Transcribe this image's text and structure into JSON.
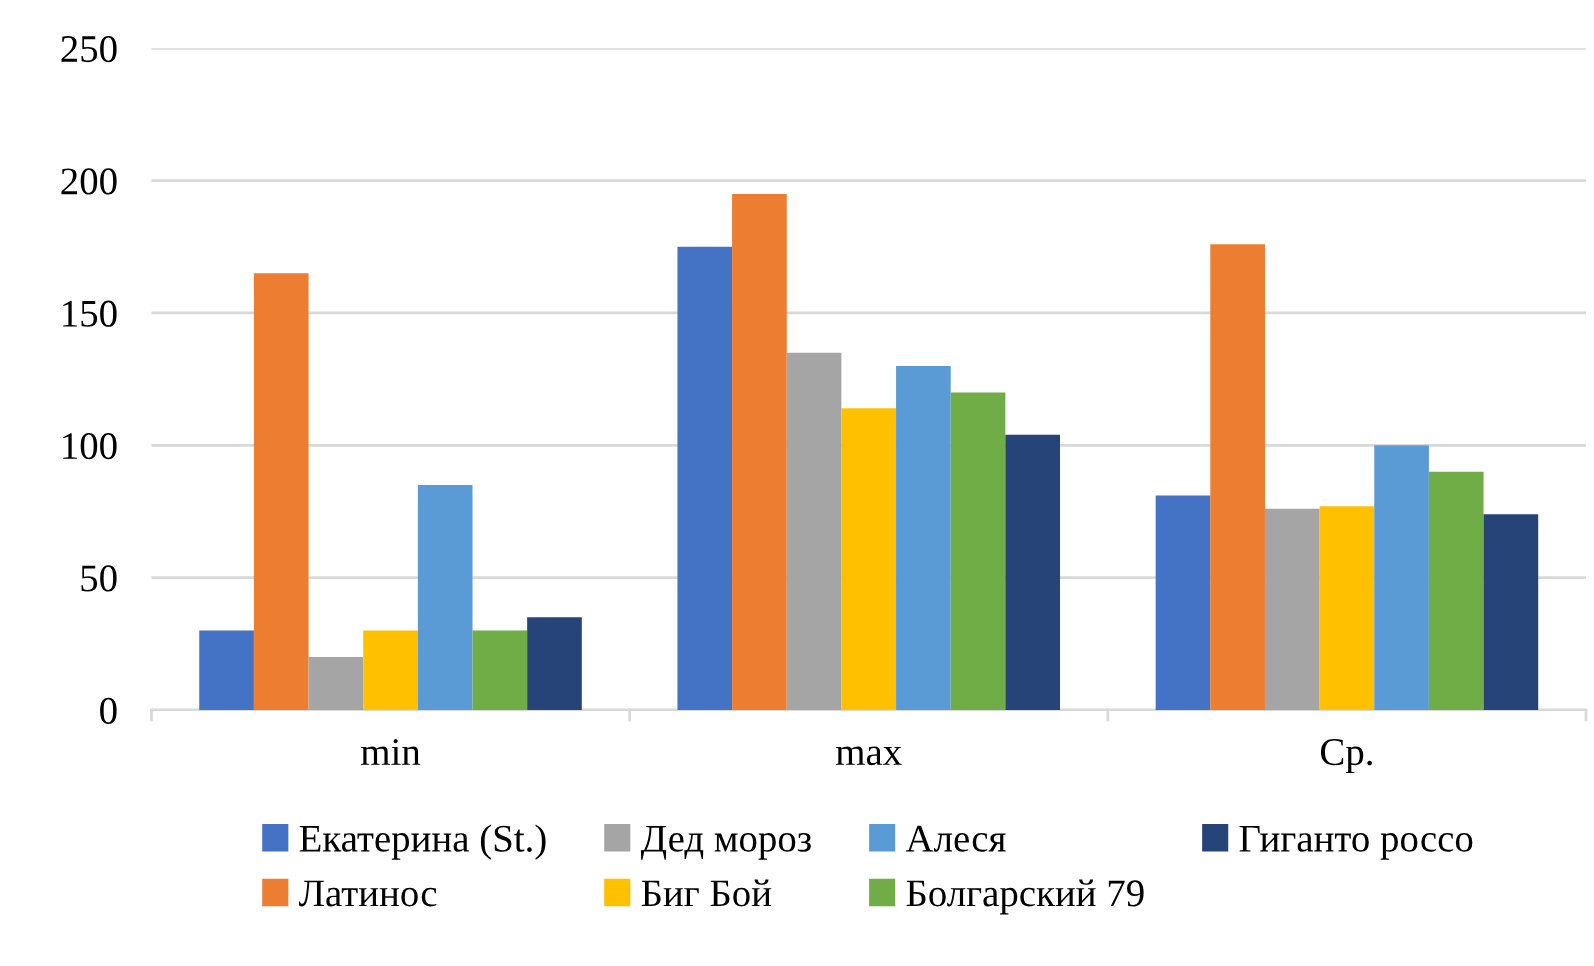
{
  "chart_data": {
    "type": "bar",
    "categories": [
      "min",
      "max",
      "Ср."
    ],
    "series": [
      {
        "name": "Екатерина (St.)",
        "color": "#4472c4",
        "values": [
          30,
          175,
          81
        ]
      },
      {
        "name": "Латинос",
        "color": "#ed7d31",
        "values": [
          165,
          195,
          176
        ]
      },
      {
        "name": "Дед мороз",
        "color": "#a5a5a5",
        "values": [
          20,
          135,
          76
        ]
      },
      {
        "name": "Биг Бой",
        "color": "#ffc000",
        "values": [
          30,
          114,
          77
        ]
      },
      {
        "name": "Алеся",
        "color": "#5b9bd5",
        "values": [
          85,
          130,
          100
        ]
      },
      {
        "name": "Болгарский 79",
        "color": "#70ad47",
        "values": [
          30,
          120,
          90
        ]
      },
      {
        "name": "Гиганто россо",
        "color": "#264478",
        "values": [
          35,
          104,
          74
        ]
      }
    ],
    "ylim": [
      0,
      250
    ],
    "yticks": [
      0,
      50,
      100,
      150,
      200,
      250
    ],
    "grid": "y",
    "legend": "bottom"
  }
}
